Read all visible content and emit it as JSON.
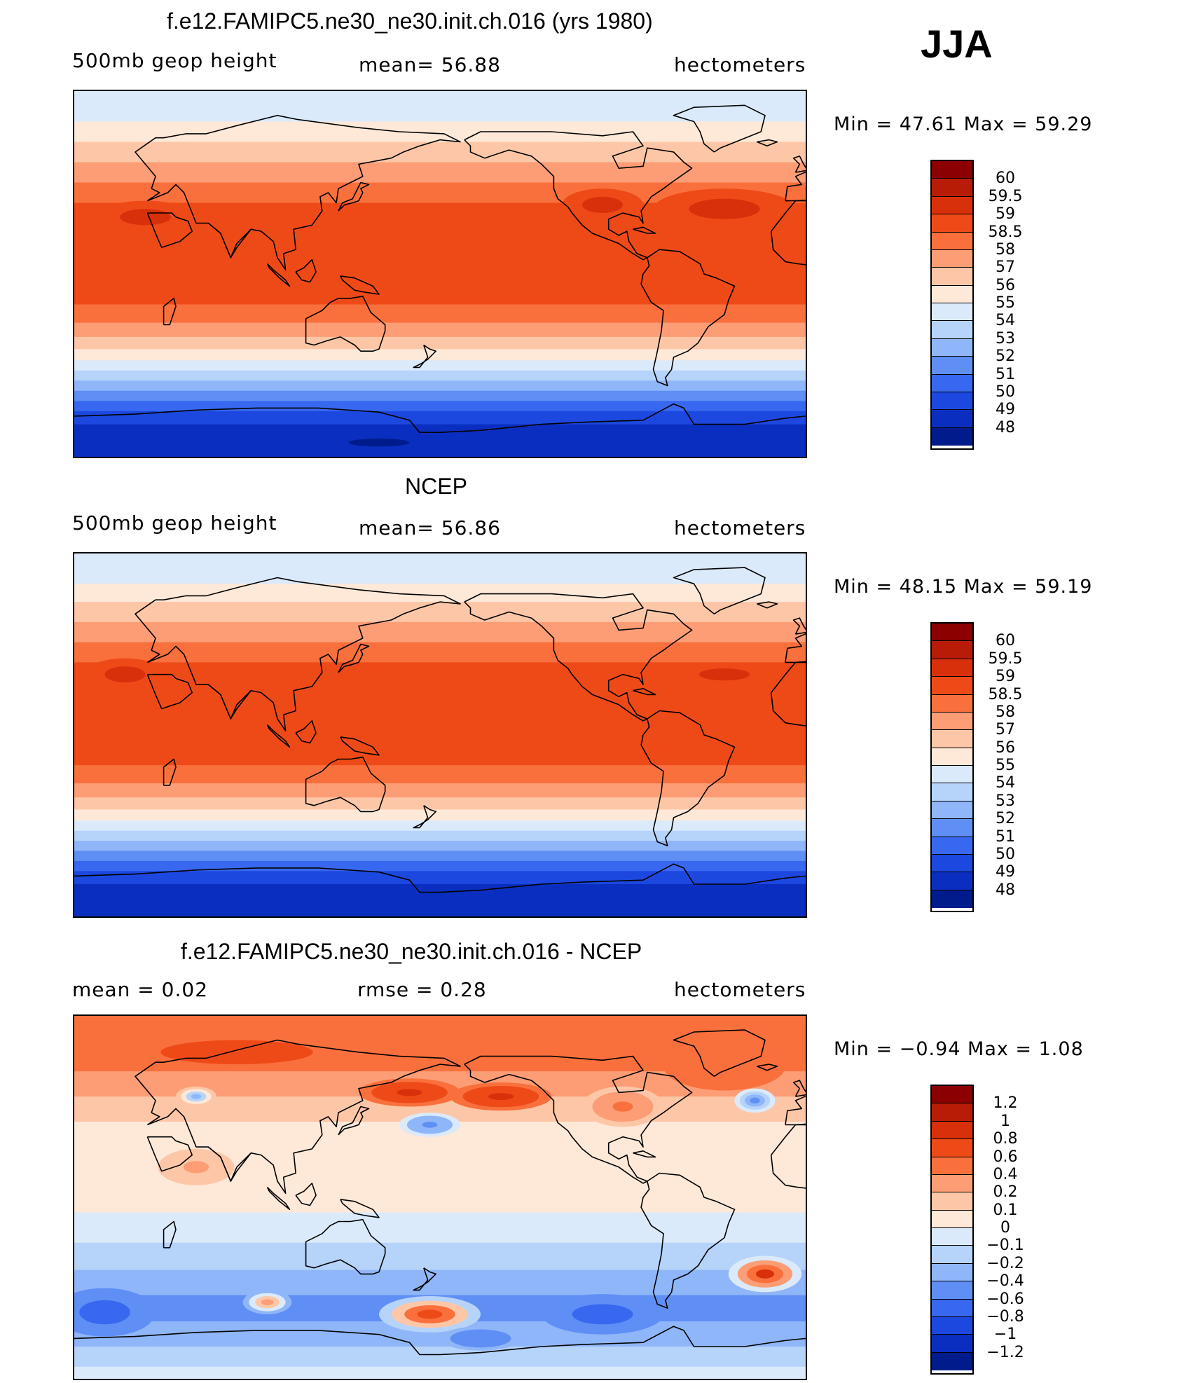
{
  "season": "JJA",
  "panels": [
    {
      "title": "f.e12.FAMIPC5.ne30_ne30.init.ch.016 (yrs 1980)",
      "left_text": "500mb  geop  height",
      "mid_text": "mean=   56.88",
      "right_text": "hectometers",
      "stats": "Min  =    47.61  Max  =    59.29",
      "levels": [
        "60",
        "59.5",
        "59",
        "58.5",
        "58",
        "57",
        "56",
        "55",
        "54",
        "53",
        "52",
        "51",
        "50",
        "49",
        "48"
      ],
      "colors": [
        "#8b0000",
        "#b81c07",
        "#d9300c",
        "#ee4a18",
        "#f9703d",
        "#fc9d75",
        "#fdc7a7",
        "#fee8d8",
        "#dbeafb",
        "#b6d3fa",
        "#8fb6f8",
        "#5f8ff5",
        "#3868ef",
        "#1c48e0",
        "#0a2fc0",
        "#001c8c"
      ],
      "bands": [
        {
          "lat": 80,
          "value": 54.5
        },
        {
          "lat": 70,
          "value": 55.5
        },
        {
          "lat": 60,
          "value": 56.5
        },
        {
          "lat": 50,
          "value": 57.5
        },
        {
          "lat": 40,
          "value": 58.2
        },
        {
          "lat": 30,
          "value": 58.7
        },
        {
          "lat": 20,
          "value": 58.7
        },
        {
          "lat": 10,
          "value": 58.7
        },
        {
          "lat": 0,
          "value": 58.7
        },
        {
          "lat": -10,
          "value": 58.6
        },
        {
          "lat": -20,
          "value": 58.1
        },
        {
          "lat": -28,
          "value": 57.5
        },
        {
          "lat": -34,
          "value": 56.5
        },
        {
          "lat": -40,
          "value": 55.5
        },
        {
          "lat": -45,
          "value": 54.5
        },
        {
          "lat": -50,
          "value": 53.5
        },
        {
          "lat": -55,
          "value": 52.5
        },
        {
          "lat": -60,
          "value": 51.5
        },
        {
          "lat": -65,
          "value": 50.5
        },
        {
          "lat": -70,
          "value": 49.5
        },
        {
          "lat": -78,
          "value": 48.5
        },
        {
          "lat": -86,
          "value": 48.2
        }
      ],
      "blobs": [
        {
          "lon": -40,
          "lat": 32,
          "rx": 35,
          "ry": 10,
          "value": 59.2
        },
        {
          "lon": -100,
          "lat": 34,
          "rx": 20,
          "ry": 8,
          "value": 59.2
        },
        {
          "lon": 35,
          "lat": 28,
          "rx": 25,
          "ry": 8,
          "value": 59.1
        },
        {
          "lon": 150,
          "lat": -83,
          "rx": 30,
          "ry": 4,
          "value": 47.8
        }
      ]
    },
    {
      "title": "NCEP",
      "left_text": "500mb  geop  height",
      "mid_text": "mean=   56.86",
      "right_text": "hectometers",
      "stats": "Min  =    48.15  Max  =    59.19",
      "levels": [
        "60",
        "59.5",
        "59",
        "58.5",
        "58",
        "57",
        "56",
        "55",
        "54",
        "53",
        "52",
        "51",
        "50",
        "49",
        "48"
      ],
      "colors": [
        "#8b0000",
        "#b81c07",
        "#d9300c",
        "#ee4a18",
        "#f9703d",
        "#fc9d75",
        "#fdc7a7",
        "#fee8d8",
        "#dbeafb",
        "#b6d3fa",
        "#8fb6f8",
        "#5f8ff5",
        "#3868ef",
        "#1c48e0",
        "#0a2fc0",
        "#001c8c"
      ],
      "bands": [
        {
          "lat": 80,
          "value": 54.5
        },
        {
          "lat": 70,
          "value": 55.5
        },
        {
          "lat": 62,
          "value": 56.5
        },
        {
          "lat": 50,
          "value": 57.5
        },
        {
          "lat": 42,
          "value": 58.2
        },
        {
          "lat": 30,
          "value": 58.7
        },
        {
          "lat": 20,
          "value": 58.7
        },
        {
          "lat": 0,
          "value": 58.7
        },
        {
          "lat": -10,
          "value": 58.7
        },
        {
          "lat": -20,
          "value": 58.2
        },
        {
          "lat": -28,
          "value": 57.5
        },
        {
          "lat": -34,
          "value": 56.5
        },
        {
          "lat": -40,
          "value": 55.5
        },
        {
          "lat": -45,
          "value": 54.5
        },
        {
          "lat": -50,
          "value": 53.5
        },
        {
          "lat": -55,
          "value": 52.5
        },
        {
          "lat": -60,
          "value": 51.5
        },
        {
          "lat": -65,
          "value": 50.5
        },
        {
          "lat": -70,
          "value": 49.5
        },
        {
          "lat": -78,
          "value": 48.7
        },
        {
          "lat": -86,
          "value": 48.6
        }
      ],
      "blobs": [
        {
          "lon": -40,
          "lat": 30,
          "rx": 25,
          "ry": 6,
          "value": 59.1
        },
        {
          "lon": 25,
          "lat": 30,
          "rx": 20,
          "ry": 8,
          "value": 59.1
        }
      ]
    },
    {
      "title": "f.e12.FAMIPC5.ne30_ne30.init.ch.016 - NCEP",
      "left_text": "mean  =      0.02",
      "mid_text": "rmse  =      0.28",
      "right_text": "hectometers",
      "stats": "Min  =    −0.94  Max  =      1.08",
      "levels": [
        "1.2",
        "1",
        "0.8",
        "0.6",
        "0.4",
        "0.2",
        "0.1",
        "0",
        "−0.1",
        "−0.2",
        "−0.4",
        "−0.6",
        "−0.8",
        "−1",
        "−1.2"
      ],
      "colors": [
        "#8b0000",
        "#b81c07",
        "#d9300c",
        "#ee4a18",
        "#f9703d",
        "#fc9d75",
        "#fdc7a7",
        "#fee8d8",
        "#dbeafb",
        "#b6d3fa",
        "#8fb6f8",
        "#5f8ff5",
        "#3868ef",
        "#1c48e0",
        "#0a2fc0",
        "#001c8c"
      ],
      "bands": [
        {
          "lat": 85,
          "value": 0.5
        },
        {
          "lat": 70,
          "value": 0.5
        },
        {
          "lat": 55,
          "value": 0.3
        },
        {
          "lat": 45,
          "value": 0.12
        },
        {
          "lat": 30,
          "value": 0.05
        },
        {
          "lat": 15,
          "value": 0.05
        },
        {
          "lat": 0,
          "value": 0.03
        },
        {
          "lat": -15,
          "value": -0.05
        },
        {
          "lat": -30,
          "value": -0.15
        },
        {
          "lat": -42,
          "value": -0.35
        },
        {
          "lat": -55,
          "value": -0.45
        },
        {
          "lat": -68,
          "value": -0.3
        },
        {
          "lat": -80,
          "value": -0.15
        },
        {
          "lat": -88,
          "value": -0.1
        }
      ],
      "blobs": [
        {
          "lon": 80,
          "lat": 72,
          "rx": 50,
          "ry": 8,
          "value": 0.75
        },
        {
          "lon": 165,
          "lat": 52,
          "rx": 25,
          "ry": 7,
          "value": 0.9
        },
        {
          "lon": -150,
          "lat": 50,
          "rx": 25,
          "ry": 7,
          "value": 0.9
        },
        {
          "lon": 175,
          "lat": 36,
          "rx": 15,
          "ry": 6,
          "value": -0.5
        },
        {
          "lon": 60,
          "lat": 50,
          "rx": 10,
          "ry": 5,
          "value": -0.3
        },
        {
          "lon": -25,
          "lat": 48,
          "rx": 10,
          "ry": 6,
          "value": -0.5
        },
        {
          "lon": -90,
          "lat": 45,
          "rx": 20,
          "ry": 10,
          "value": 0.4
        },
        {
          "lon": -40,
          "lat": 65,
          "rx": 30,
          "ry": 12,
          "value": 0.4
        },
        {
          "lon": -20,
          "lat": -38,
          "rx": 18,
          "ry": 9,
          "value": 0.85
        },
        {
          "lon": 175,
          "lat": -58,
          "rx": 25,
          "ry": 9,
          "value": 0.75
        },
        {
          "lon": 95,
          "lat": -52,
          "rx": 12,
          "ry": 6,
          "value": 0.35
        },
        {
          "lon": 15,
          "lat": -57,
          "rx": 25,
          "ry": 12,
          "value": -0.65
        },
        {
          "lon": -100,
          "lat": -58,
          "rx": 30,
          "ry": 10,
          "value": -0.7
        },
        {
          "lon": -160,
          "lat": -70,
          "rx": 20,
          "ry": 6,
          "value": -0.55
        },
        {
          "lon": 60,
          "lat": 15,
          "rx": 25,
          "ry": 12,
          "value": 0.2
        }
      ]
    }
  ]
}
